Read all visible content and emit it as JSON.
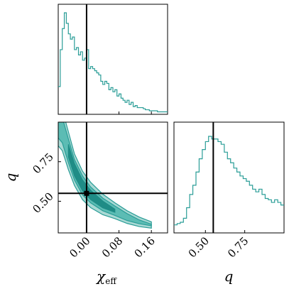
{
  "chart_data": {
    "type": "corner",
    "color": "#2a9d97",
    "fill_light": "#a9d9d4",
    "fill_mid": "#5cbcb4",
    "fill_dark": "#1f8c86",
    "truth": {
      "chi_eff": 0.0,
      "q": 0.55
    },
    "chi_eff_range": [
      -0.07,
      0.2
    ],
    "q_range": [
      0.3,
      1.0
    ],
    "panels": [
      {
        "id": "hist-chi-eff",
        "type": "histogram",
        "param": "chi_eff",
        "x": [
          -0.07,
          -0.065,
          -0.06,
          -0.055,
          -0.05,
          -0.045,
          -0.04,
          -0.035,
          -0.03,
          -0.025,
          -0.02,
          -0.015,
          -0.01,
          -0.005,
          0.0,
          0.005,
          0.01,
          0.015,
          0.02,
          0.025,
          0.03,
          0.035,
          0.04,
          0.045,
          0.05,
          0.055,
          0.06,
          0.065,
          0.07,
          0.075,
          0.08,
          0.085,
          0.09,
          0.095,
          0.1,
          0.105,
          0.11,
          0.115,
          0.12,
          0.125,
          0.13,
          0.135,
          0.14,
          0.145,
          0.15,
          0.155,
          0.16,
          0.165,
          0.17,
          0.175,
          0.18,
          0.185,
          0.19,
          0.195
        ],
        "values": [
          0.25,
          0.6,
          0.8,
          0.95,
          0.85,
          0.75,
          0.7,
          0.72,
          0.6,
          0.62,
          0.55,
          0.58,
          0.5,
          0.52,
          0.6,
          0.42,
          0.44,
          0.42,
          0.4,
          0.38,
          0.36,
          0.3,
          0.27,
          0.3,
          0.28,
          0.22,
          0.24,
          0.2,
          0.22,
          0.16,
          0.18,
          0.14,
          0.12,
          0.1,
          0.12,
          0.08,
          0.1,
          0.06,
          0.07,
          0.05,
          0.05,
          0.05,
          0.04,
          0.03,
          0.03,
          0.02,
          0.02,
          0.02,
          0.02,
          0.01,
          0.01,
          0.01,
          0.01,
          0.01
        ]
      },
      {
        "id": "hist-q",
        "type": "histogram",
        "param": "q",
        "x": [
          0.3,
          0.32,
          0.34,
          0.36,
          0.38,
          0.4,
          0.42,
          0.44,
          0.46,
          0.48,
          0.5,
          0.52,
          0.54,
          0.56,
          0.58,
          0.6,
          0.62,
          0.64,
          0.66,
          0.68,
          0.7,
          0.72,
          0.74,
          0.76,
          0.78,
          0.8,
          0.82,
          0.84,
          0.86,
          0.88,
          0.9,
          0.92,
          0.94,
          0.96,
          0.98
        ],
        "values": [
          0.05,
          0.06,
          0.07,
          0.1,
          0.18,
          0.28,
          0.35,
          0.45,
          0.55,
          0.62,
          0.68,
          0.72,
          0.7,
          0.7,
          0.68,
          0.66,
          0.6,
          0.55,
          0.52,
          0.48,
          0.45,
          0.42,
          0.4,
          0.38,
          0.35,
          0.32,
          0.3,
          0.32,
          0.28,
          0.25,
          0.24,
          0.22,
          0.24,
          0.22,
          0.2
        ]
      }
    ],
    "x_axis_chi_eff": {
      "label": "χ",
      "label_sub": "eff",
      "ticks": [
        0.0,
        0.08,
        0.16
      ],
      "tick_labels": [
        "0.00",
        "0.08",
        "0.16"
      ]
    },
    "x_axis_q": {
      "label": "q",
      "ticks": [
        0.5,
        0.75
      ],
      "tick_labels": [
        "0.50",
        "0.75"
      ]
    },
    "y_axis_q": {
      "label": "q",
      "ticks": [
        0.5,
        0.75
      ],
      "tick_labels": [
        "0.50",
        "0.75"
      ]
    }
  }
}
